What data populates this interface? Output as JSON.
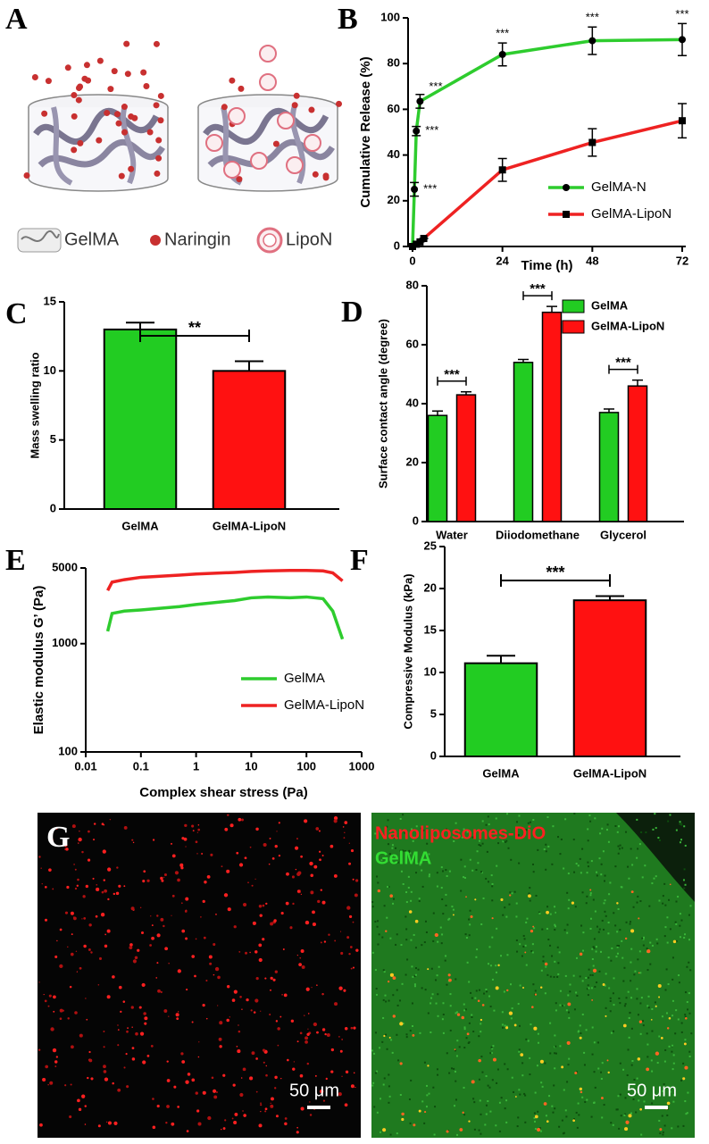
{
  "panel_a": {
    "label": "A",
    "legend": [
      "GelMA",
      "Naringin",
      "LipoN"
    ]
  },
  "chart_data": [
    {
      "type": "line",
      "label": "B",
      "xlabel": "Time  (h)",
      "ylabel": "Cumulative Release (%)",
      "xlim": [
        0,
        72
      ],
      "ylim": [
        0,
        100
      ],
      "xticks": [
        0,
        24,
        48,
        72
      ],
      "yticks": [
        0,
        20,
        40,
        60,
        80,
        100
      ],
      "legend": "lower right",
      "series": [
        {
          "name": "GelMA-N",
          "color": "#2ecc2e",
          "marker": "circle",
          "x": [
            0,
            0.5,
            1,
            2,
            24,
            48,
            72
          ],
          "values": [
            0,
            25,
            50.5,
            63.5,
            84,
            90,
            90.5
          ],
          "errors": [
            0,
            3,
            2,
            3,
            5,
            6,
            7
          ]
        },
        {
          "name": "GelMA-LipoN",
          "color": "#ee2222",
          "marker": "square",
          "x": [
            0,
            1,
            2,
            3,
            24,
            48,
            72
          ],
          "values": [
            0,
            1,
            2,
            3.5,
            33.5,
            45.5,
            55
          ],
          "errors": [
            0,
            0,
            0,
            0,
            5,
            6,
            7.5
          ]
        }
      ],
      "annotations": [
        "***",
        "***",
        "***",
        "***",
        "***",
        "***"
      ]
    },
    {
      "type": "bar",
      "label": "C",
      "ylabel": "Mass swelling ratio",
      "categories": [
        "GelMA",
        "GelMA-LipoN"
      ],
      "values": [
        13,
        10
      ],
      "errors": [
        0.5,
        0.7
      ],
      "colors": [
        "#22cc22",
        "#ff1111"
      ],
      "ylim": [
        0,
        15
      ],
      "yticks": [
        0,
        5,
        10,
        15
      ],
      "significance": "**"
    },
    {
      "type": "grouped_bar",
      "label": "D",
      "ylabel": "Surface contact angle (degree)",
      "categories": [
        "Water",
        "Diiodomethane",
        "Glycerol"
      ],
      "series": [
        {
          "name": "GelMA",
          "color": "#22cc22",
          "values": [
            36,
            54,
            37
          ],
          "errors": [
            1.5,
            1,
            1.2
          ]
        },
        {
          "name": "GelMA-LipoN",
          "color": "#ff1111",
          "values": [
            43,
            71,
            46
          ],
          "errors": [
            1,
            2,
            2
          ]
        }
      ],
      "ylim": [
        0,
        80
      ],
      "yticks": [
        0,
        20,
        40,
        60,
        80
      ],
      "legend": "upper right",
      "significance": [
        "***",
        "***",
        "***"
      ]
    },
    {
      "type": "line",
      "label": "E",
      "xlabel": "Complex shear stress (Pa)",
      "ylabel": "Elastic modulus G’ (Pa)",
      "log_x": true,
      "log_y": true,
      "xlim": [
        0.01,
        1000
      ],
      "ylim": [
        100,
        5000
      ],
      "xticks": [
        0.01,
        0.1,
        1,
        10,
        100,
        1000
      ],
      "yticks": [
        100,
        1000,
        5000
      ],
      "legend": "lower right",
      "series": [
        {
          "name": "GelMA",
          "color": "#2ecc2e",
          "x": [
            0.025,
            0.03,
            0.05,
            0.1,
            0.5,
            1,
            5,
            10,
            20,
            50,
            100,
            200,
            300,
            450
          ],
          "values": [
            1300,
            1900,
            2000,
            2050,
            2200,
            2300,
            2500,
            2650,
            2700,
            2650,
            2700,
            2600,
            2000,
            1100
          ]
        },
        {
          "name": "GelMA-LipoN",
          "color": "#ee2222",
          "x": [
            0.025,
            0.03,
            0.05,
            0.1,
            0.5,
            1,
            5,
            10,
            20,
            50,
            100,
            200,
            300,
            450
          ],
          "values": [
            3100,
            3700,
            3900,
            4100,
            4300,
            4400,
            4550,
            4650,
            4700,
            4750,
            4750,
            4700,
            4500,
            3800
          ]
        }
      ]
    },
    {
      "type": "bar",
      "label": "F",
      "ylabel": "Compressive Modulus (kPa)",
      "categories": [
        "GelMA",
        "GelMA-LipoN"
      ],
      "values": [
        11.1,
        18.6
      ],
      "errors": [
        0.9,
        0.5
      ],
      "colors": [
        "#22cc22",
        "#ff1111"
      ],
      "ylim": [
        0,
        25
      ],
      "yticks": [
        0,
        5,
        10,
        15,
        20,
        25
      ],
      "significance": "***"
    }
  ],
  "panel_g": {
    "label": "G",
    "channels": [
      "Nanoliposomes-DiO",
      "GelMA"
    ],
    "scale_bars": [
      "50 μm",
      "50 μm"
    ]
  }
}
